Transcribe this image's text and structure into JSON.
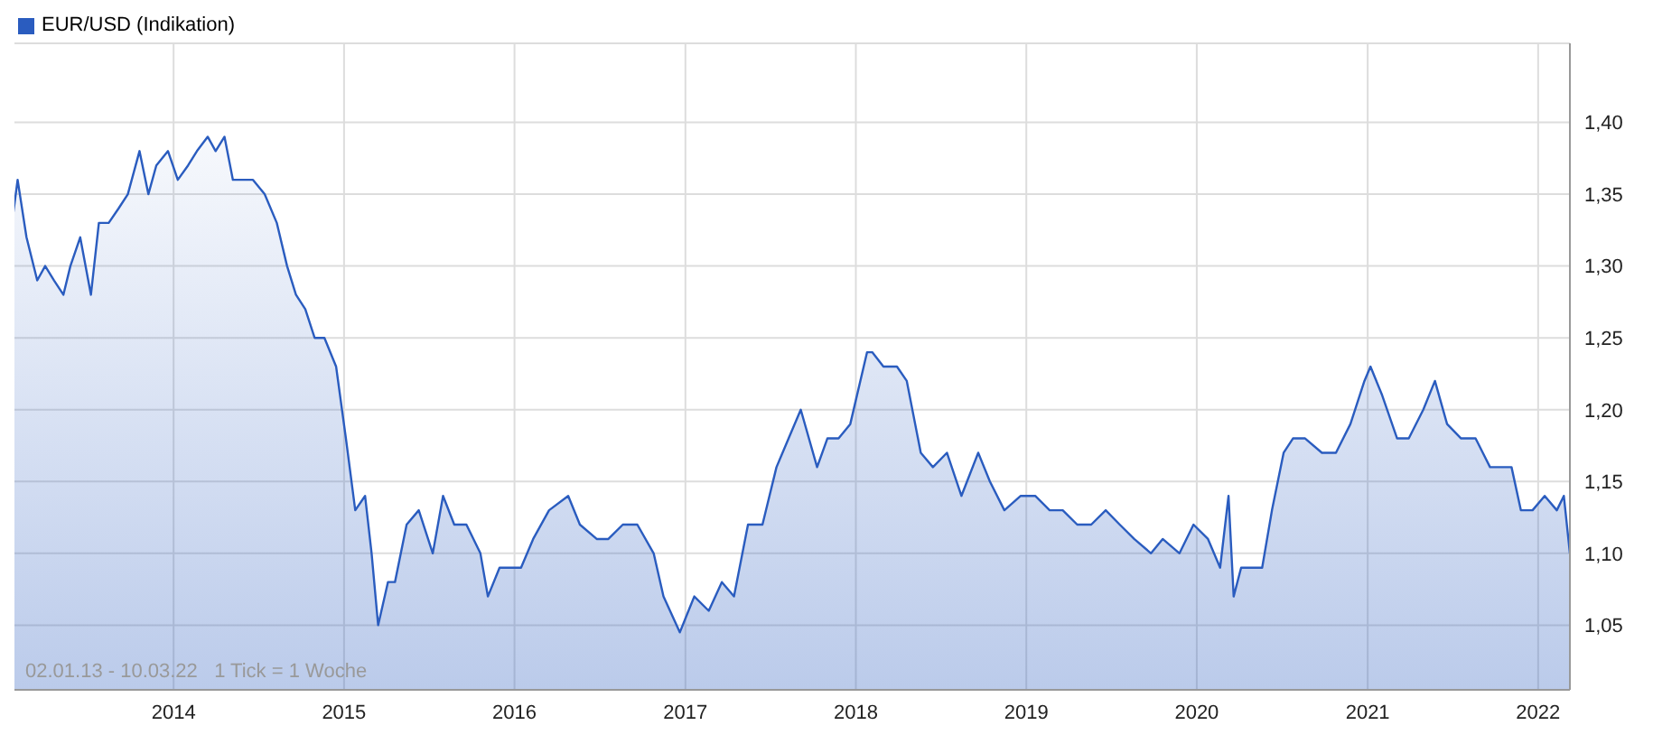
{
  "chart_data": {
    "type": "area",
    "legend": "top left",
    "grid": true,
    "marker": "none",
    "line_style": "solid",
    "annotations": [
      "02.01.13 - 10.03.22   1 Tick = 1 Woche"
    ],
    "xlim": [
      "2013-01-02",
      "2022-03-10"
    ],
    "xticks": [
      {
        "value": "2014-01-01",
        "label": "2014"
      },
      {
        "value": "2015-01-01",
        "label": "2015"
      },
      {
        "value": "2016-01-01",
        "label": "2016"
      },
      {
        "value": "2017-01-01",
        "label": "2017"
      },
      {
        "value": "2018-01-01",
        "label": "2018"
      },
      {
        "value": "2019-01-01",
        "label": "2019"
      },
      {
        "value": "2020-01-01",
        "label": "2020"
      },
      {
        "value": "2021-01-01",
        "label": "2021"
      },
      {
        "value": "2022-01-01",
        "label": "2022"
      }
    ],
    "ylim": [
      1.005,
      1.455
    ],
    "yticks": [
      {
        "value": 1.05,
        "label": "1,05"
      },
      {
        "value": 1.1,
        "label": "1,10"
      },
      {
        "value": 1.15,
        "label": "1,15"
      },
      {
        "value": 1.2,
        "label": "1,20"
      },
      {
        "value": 1.25,
        "label": "1,25"
      },
      {
        "value": 1.3,
        "label": "1,30"
      },
      {
        "value": 1.35,
        "label": "1,35"
      },
      {
        "value": 1.4,
        "label": "1,40"
      }
    ],
    "series": [
      {
        "name": "EUR/USD (Indikation)",
        "color": "#2a5cbf",
        "x": [
          "2013-01-02",
          "2013-01-20",
          "2013-02-01",
          "2013-02-20",
          "2013-03-15",
          "2013-04-01",
          "2013-04-20",
          "2013-05-10",
          "2013-05-25",
          "2013-06-15",
          "2013-07-08",
          "2013-07-25",
          "2013-08-15",
          "2013-09-05",
          "2013-09-25",
          "2013-10-20",
          "2013-11-08",
          "2013-11-25",
          "2013-12-20",
          "2014-01-10",
          "2014-02-01",
          "2014-02-20",
          "2014-03-15",
          "2014-04-01",
          "2014-04-20",
          "2014-05-08",
          "2014-05-28",
          "2014-06-20",
          "2014-07-15",
          "2014-08-10",
          "2014-09-01",
          "2014-09-20",
          "2014-10-10",
          "2014-10-30",
          "2014-11-20",
          "2014-12-15",
          "2015-01-05",
          "2015-01-25",
          "2015-02-15",
          "2015-03-01",
          "2015-03-15",
          "2015-04-05",
          "2015-04-20",
          "2015-05-15",
          "2015-06-10",
          "2015-07-10",
          "2015-08-01",
          "2015-08-25",
          "2015-09-20",
          "2015-10-20",
          "2015-11-05",
          "2015-11-30",
          "2015-12-20",
          "2016-01-15",
          "2016-02-10",
          "2016-03-15",
          "2016-04-25",
          "2016-05-20",
          "2016-06-25",
          "2016-07-20",
          "2016-08-20",
          "2016-09-20",
          "2016-10-25",
          "2016-11-15",
          "2016-12-20",
          "2017-01-20",
          "2017-02-20",
          "2017-03-20",
          "2017-04-15",
          "2017-05-15",
          "2017-06-15",
          "2017-07-15",
          "2017-08-10",
          "2017-09-05",
          "2017-10-10",
          "2017-11-01",
          "2017-11-25",
          "2017-12-20",
          "2018-01-25",
          "2018-02-05",
          "2018-03-01",
          "2018-03-30",
          "2018-04-20",
          "2018-05-20",
          "2018-06-15",
          "2018-07-15",
          "2018-08-15",
          "2018-09-20",
          "2018-10-15",
          "2018-11-15",
          "2018-12-20",
          "2019-01-20",
          "2019-02-20",
          "2019-03-20",
          "2019-04-20",
          "2019-05-20",
          "2019-06-20",
          "2019-07-20",
          "2019-08-20",
          "2019-09-25",
          "2019-10-20",
          "2019-11-25",
          "2019-12-25",
          "2020-01-25",
          "2020-02-20",
          "2020-03-09",
          "2020-03-20",
          "2020-04-05",
          "2020-04-25",
          "2020-05-20",
          "2020-06-10",
          "2020-07-05",
          "2020-07-25",
          "2020-08-20",
          "2020-09-25",
          "2020-10-25",
          "2020-11-25",
          "2020-12-25",
          "2021-01-07",
          "2021-02-01",
          "2021-03-05",
          "2021-03-30",
          "2021-04-30",
          "2021-05-25",
          "2021-06-20",
          "2021-07-20",
          "2021-08-20",
          "2021-09-20",
          "2021-10-15",
          "2021-11-05",
          "2021-11-25",
          "2021-12-20",
          "2022-01-15",
          "2022-02-10",
          "2022-02-25",
          "2022-03-10"
        ],
        "values": [
          1.31,
          1.33,
          1.36,
          1.32,
          1.29,
          1.3,
          1.29,
          1.28,
          1.3,
          1.32,
          1.28,
          1.33,
          1.33,
          1.34,
          1.35,
          1.38,
          1.35,
          1.37,
          1.38,
          1.36,
          1.37,
          1.38,
          1.39,
          1.38,
          1.39,
          1.36,
          1.36,
          1.36,
          1.35,
          1.33,
          1.3,
          1.28,
          1.27,
          1.25,
          1.25,
          1.23,
          1.18,
          1.13,
          1.14,
          1.1,
          1.05,
          1.08,
          1.08,
          1.12,
          1.13,
          1.1,
          1.14,
          1.12,
          1.12,
          1.1,
          1.07,
          1.09,
          1.09,
          1.09,
          1.11,
          1.13,
          1.14,
          1.12,
          1.11,
          1.11,
          1.12,
          1.12,
          1.1,
          1.07,
          1.045,
          1.07,
          1.06,
          1.08,
          1.07,
          1.12,
          1.12,
          1.16,
          1.18,
          1.2,
          1.16,
          1.18,
          1.18,
          1.19,
          1.24,
          1.24,
          1.23,
          1.23,
          1.22,
          1.17,
          1.16,
          1.17,
          1.14,
          1.17,
          1.15,
          1.13,
          1.14,
          1.14,
          1.13,
          1.13,
          1.12,
          1.12,
          1.13,
          1.12,
          1.11,
          1.1,
          1.11,
          1.1,
          1.12,
          1.11,
          1.09,
          1.14,
          1.07,
          1.09,
          1.09,
          1.09,
          1.13,
          1.17,
          1.18,
          1.18,
          1.17,
          1.17,
          1.19,
          1.22,
          1.23,
          1.21,
          1.18,
          1.18,
          1.2,
          1.22,
          1.19,
          1.18,
          1.18,
          1.16,
          1.16,
          1.16,
          1.13,
          1.13,
          1.14,
          1.13,
          1.14,
          1.1
        ]
      }
    ]
  }
}
